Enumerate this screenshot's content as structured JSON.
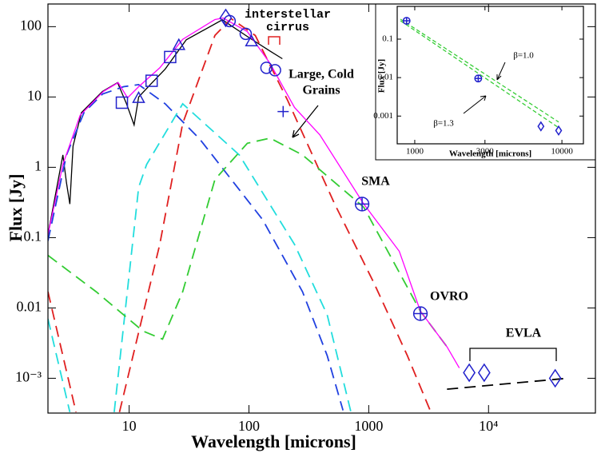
{
  "chart_data": [
    {
      "type": "line",
      "xlabel": "Wavelength [microns]",
      "ylabel": "Flux [Jy]",
      "xlog": true,
      "ylog": true,
      "xlim": [
        2.1,
        78000
      ],
      "ylim": [
        0.00032,
        210
      ],
      "xticks": [
        10,
        100,
        1000,
        {
          "value": 10000,
          "label": "10⁴"
        }
      ],
      "yticks": [
        100,
        10,
        1,
        0.1,
        0.01,
        {
          "value": 0.001,
          "label": "10⁻³"
        }
      ],
      "series": [
        {
          "color": "#000000",
          "dash": false,
          "x": [
            2.1,
            2.8,
            3.0,
            3.2,
            3.4,
            4,
            6,
            8,
            9.5,
            11,
            12,
            15,
            20,
            30,
            60,
            100,
            150,
            190
          ],
          "values": [
            0.11,
            1.5,
            0.6,
            0.3,
            2,
            6,
            12,
            16,
            8,
            4,
            10,
            15,
            25,
            65,
            125,
            70,
            45,
            35
          ]
        },
        {
          "color": "#2040e0",
          "dash": true,
          "x": [
            2.1,
            3,
            4.2,
            6,
            9,
            12,
            20,
            39,
            130,
            280,
            450,
            610
          ],
          "values": [
            0.09,
            1.5,
            6,
            11,
            14,
            15,
            8,
            2.5,
            0.18,
            0.017,
            0.0021,
            0.00035
          ]
        },
        {
          "color": "#22dddd",
          "dash": true,
          "x": [
            2.1,
            3.2,
            null,
            7.5,
            12,
            14,
            28,
            83,
            240,
            450,
            710
          ],
          "values": [
            0.007,
            0.00033,
            null,
            0.00033,
            0.52,
            1.1,
            8,
            1.5,
            0.08,
            0.008,
            0.00033
          ]
        },
        {
          "color": "#e02020",
          "dash": true,
          "x": [
            2.1,
            3.6,
            null,
            8.3,
            18,
            28,
            52,
            71,
            113,
            210,
            520,
            1100,
            2100,
            3300
          ],
          "values": [
            0.017,
            0.00033,
            null,
            0.00033,
            0.08,
            4.2,
            75,
            130,
            75,
            9,
            0.3,
            0.023,
            0.0021,
            0.00033
          ]
        },
        {
          "color": "#33cc33",
          "dash": true,
          "x": [
            2.1,
            5.3,
            13,
            19,
            28,
            52,
            97,
            150,
            280,
            910,
            2700,
            4500
          ],
          "values": [
            0.056,
            0.017,
            0.0047,
            0.0036,
            0.017,
            0.67,
            2.2,
            2.6,
            1.5,
            0.27,
            0.009,
            0.0028
          ]
        },
        {
          "color": "#ff00ff",
          "dash": false,
          "x": [
            2.1,
            2.8,
            3.9,
            6.1,
            8.1,
            9.7,
            12,
            18,
            28,
            52,
            61,
            97,
            150,
            240,
            390,
            910,
            1800,
            2700,
            4500,
            5700
          ],
          "values": [
            0.11,
            1.1,
            5.5,
            12,
            16,
            9.7,
            14,
            26,
            66,
            126,
            133,
            85,
            30,
            7.1,
            2.9,
            0.3,
            0.064,
            0.009,
            0.0028,
            0.0014
          ]
        },
        {
          "color": "#000000",
          "dash": true,
          "x": [
            4500,
            46000
          ],
          "values": [
            0.0007,
            0.001
          ]
        }
      ],
      "points": [
        {
          "marker": "square",
          "color": "#2222cc",
          "x": [
            8.7,
            15.4,
            22
          ],
          "values": [
            8.3,
            17,
            37
          ]
        },
        {
          "marker": "triangle",
          "color": "#2222cc",
          "x": [
            12,
            26,
            105
          ],
          "values": [
            9.7,
            55,
            62
          ]
        },
        {
          "marker": "circle",
          "color": "#2222cc",
          "x": [
            69,
            94,
            140,
            165
          ],
          "values": [
            120,
            79,
            26,
            24
          ]
        },
        {
          "marker": "diamond",
          "color": "#2222cc",
          "x": [
            64,
            6900,
            9200,
            36000
          ],
          "values": [
            133,
            0.0012,
            0.0012,
            0.001
          ]
        },
        {
          "marker": "plus",
          "color": "#2222cc",
          "x": [
            193
          ],
          "values": [
            6.2
          ]
        },
        {
          "marker": "circleplus",
          "color": "#2222cc",
          "x": [
            880,
            2700
          ],
          "values": [
            0.3,
            0.0083
          ]
        }
      ],
      "annotations": [
        "interstellar",
        "cirrus",
        "Large, Cold",
        "Grains",
        "SMA",
        "OVRO",
        "EVLA"
      ]
    },
    {
      "type": "line",
      "xlabel": "Wavelength [microns]",
      "ylabel": "Flux [Jy]",
      "xlog": true,
      "ylog": true,
      "xlim": [
        760,
        14000
      ],
      "ylim": [
        0.00019,
        0.71
      ],
      "xticks": [
        1000,
        3000,
        10000
      ],
      "yticks": [
        0.1,
        0.01,
        0.001
      ],
      "series": [
        {
          "color": "#33cc33",
          "dash": true,
          "x": [
            800,
            9500
          ],
          "values": [
            0.33,
            0.0007
          ]
        },
        {
          "color": "#33cc33",
          "dash": true,
          "x": [
            800,
            9500
          ],
          "values": [
            0.3,
            0.0005
          ]
        }
      ],
      "points": [
        {
          "marker": "circleplus",
          "color": "#2222cc",
          "x": [
            880,
            2700
          ],
          "values": [
            0.3,
            0.0095
          ]
        },
        {
          "marker": "diamond",
          "color": "#2222cc",
          "x": [
            7200,
            9500
          ],
          "values": [
            0.00054,
            0.00042
          ]
        }
      ],
      "annotations": [
        "β=1.0",
        "β=1.3"
      ]
    }
  ]
}
